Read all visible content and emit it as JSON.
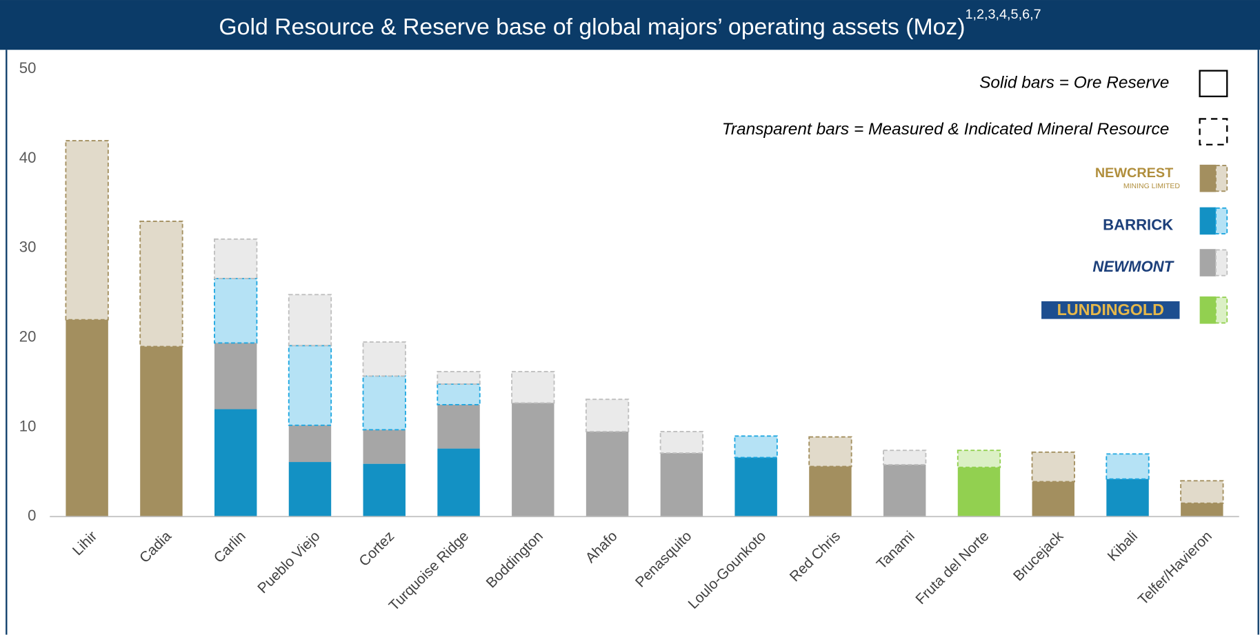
{
  "chart_data": {
    "type": "stacked_bar",
    "title": "Gold Resource & Reserve base of global majors’ operating assets (Moz)",
    "title_superscript": "1,2,3,4,5,6,7",
    "categories": [
      "Lihir",
      "Cadia",
      "Carlin",
      "Pueblo Viejo",
      "Cortez",
      "Turquoise Ridge",
      "Boddington",
      "Ahafo",
      "Penasquito",
      "Loulo-Gounkoto",
      "Red Chris",
      "Tanami",
      "Fruta del Norte",
      "Brucejack",
      "Kibali",
      "Telfer/Havieron"
    ],
    "ylim": [
      0,
      50
    ],
    "yticks": [
      0,
      10,
      20,
      30,
      40,
      50
    ],
    "grid": false,
    "key_solid": "Solid bars = Ore Reserve",
    "key_transparent": "Transparent bars = Measured & Indicated Mineral Resource",
    "series": [
      {
        "name": "NEWCREST",
        "subname": "MINING LIMITED",
        "color": "#a38f5f",
        "style": "solid",
        "values": [
          22,
          19,
          null,
          null,
          null,
          null,
          null,
          null,
          null,
          null,
          5.6,
          null,
          null,
          3.9,
          null,
          1.5
        ]
      },
      {
        "name": "BARRICK",
        "color": "#1391c4",
        "style": "solid",
        "values": [
          null,
          null,
          12,
          6.1,
          5.9,
          7.6,
          null,
          null,
          null,
          6.6,
          null,
          null,
          null,
          null,
          4.2,
          null
        ]
      },
      {
        "name": "NEWMONT",
        "color": "#a6a6a6",
        "style": "solid",
        "values": [
          null,
          null,
          7.4,
          4.1,
          3.8,
          4.9,
          12.7,
          9.5,
          7.1,
          null,
          null,
          5.8,
          null,
          null,
          null,
          null
        ]
      },
      {
        "name": "LUNDINGOLD",
        "color": "#92d050",
        "style": "solid",
        "values": [
          null,
          null,
          null,
          null,
          null,
          null,
          null,
          null,
          null,
          null,
          null,
          null,
          5.5,
          null,
          null,
          null
        ]
      },
      {
        "name": "NEWCREST",
        "color": "#a38f5f",
        "style": "dashed",
        "values": [
          20,
          14,
          null,
          null,
          null,
          null,
          null,
          null,
          null,
          null,
          3.3,
          null,
          null,
          3.3,
          null,
          2.5
        ]
      },
      {
        "name": "BARRICK",
        "color": "#1fa7e0",
        "style": "dashed",
        "values": [
          null,
          null,
          7.2,
          8.9,
          6.0,
          2.3,
          null,
          null,
          null,
          2.4,
          null,
          null,
          null,
          null,
          2.8,
          null
        ]
      },
      {
        "name": "NEWMONT",
        "color": "#bfbfbf",
        "style": "dashed",
        "values": [
          null,
          null,
          4.4,
          5.7,
          3.8,
          1.4,
          3.5,
          3.6,
          2.4,
          null,
          null,
          1.6,
          null,
          null,
          null,
          null
        ]
      },
      {
        "name": "LUNDINGOLD",
        "color": "#92d050",
        "style": "dashed",
        "values": [
          null,
          null,
          null,
          null,
          null,
          null,
          null,
          null,
          null,
          null,
          null,
          null,
          1.9,
          null,
          null,
          null
        ]
      }
    ]
  }
}
